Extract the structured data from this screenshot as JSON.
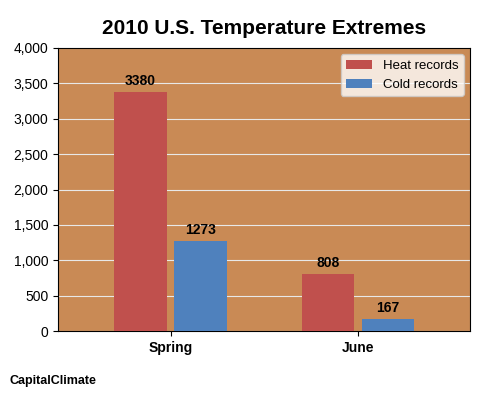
{
  "chart_data": {
    "type": "bar",
    "title": "2010 U.S. Temperature Extremes",
    "categories": [
      "Spring",
      "June"
    ],
    "series": [
      {
        "name": "Heat records",
        "color": "#c0504d",
        "values": [
          3380,
          808
        ]
      },
      {
        "name": "Cold records",
        "color": "#4f81bd",
        "values": [
          1273,
          167
        ]
      }
    ],
    "ylim": [
      0,
      4000
    ],
    "yticks": [
      0,
      500,
      {
        "value": 1000,
        "label": "1,000"
      },
      {
        "value": 1500,
        "label": "1,500"
      },
      {
        "value": 2000,
        "label": "2,000"
      },
      {
        "value": 2500,
        "label": "2,500"
      },
      {
        "value": 3000,
        "label": "3,000"
      },
      {
        "value": 3500,
        "label": "3,500"
      },
      {
        "value": 4000,
        "label": "4,000"
      }
    ],
    "grid": true,
    "legend": "upper right",
    "data_labels": true,
    "annotations": [
      "CapitalClimate"
    ]
  }
}
